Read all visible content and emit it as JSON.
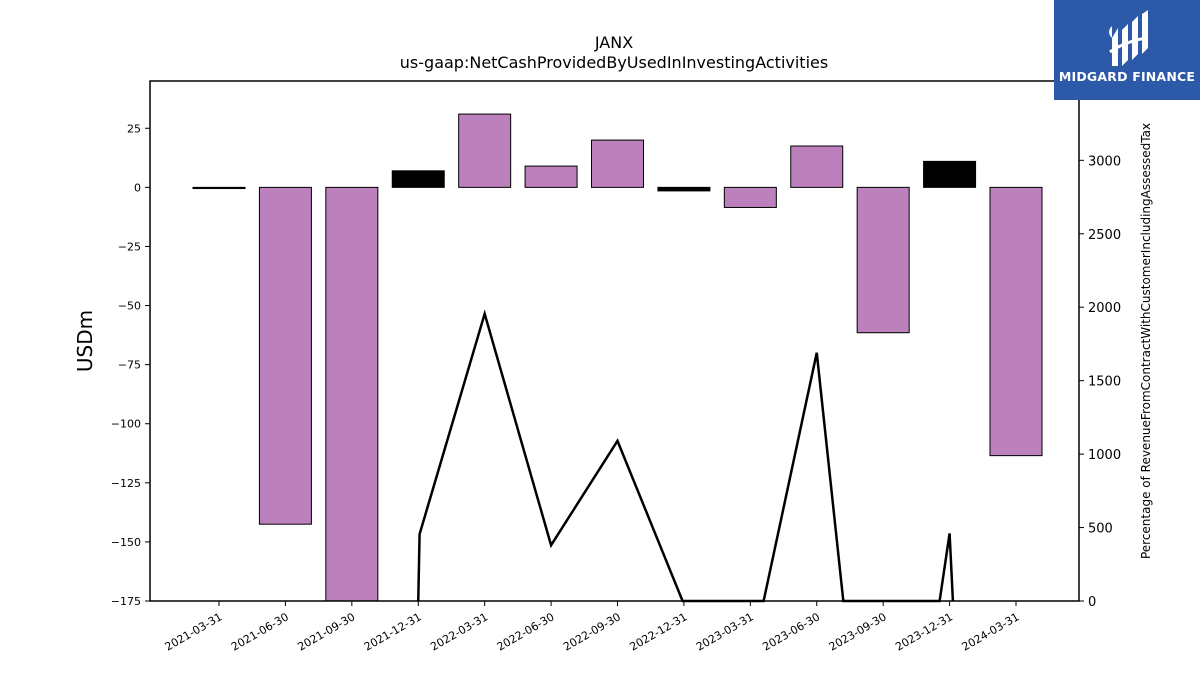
{
  "chart_data": {
    "type": "bar",
    "title": "JANX",
    "subtitle": "us-gaap:NetCashProvidedByUsedInInvestingActivities",
    "ylabel": "USDm",
    "y2label": "Percentage of RevenueFromContractWithCustomerIncludingAssessedTax",
    "categories": [
      "2021-03-31",
      "2021-06-30",
      "2021-09-30",
      "2021-12-31",
      "2022-03-31",
      "2022-06-30",
      "2022-09-30",
      "2022-12-31",
      "2023-03-31",
      "2023-06-30",
      "2023-09-30",
      "2023-12-31",
      "2024-03-31"
    ],
    "values": [
      -0.5,
      -142.5,
      -178,
      7,
      31,
      9,
      20,
      -1.5,
      -8.5,
      17.5,
      -61.5,
      11,
      -113.5
    ],
    "bar_colors": [
      "#000000",
      "#bc80bd",
      "#bc80bd",
      "#000000",
      "#bc80bd",
      "#bc80bd",
      "#bc80bd",
      "#000000",
      "#bc80bd",
      "#bc80bd",
      "#bc80bd",
      "#000000",
      "#bc80bd"
    ],
    "ylim": [
      -175,
      45
    ],
    "yticks": [
      25,
      0,
      -25,
      -50,
      -75,
      -100,
      -125,
      -150,
      -175
    ],
    "ytick_labels": [
      "25",
      "0",
      "−25",
      "−50",
      "−75",
      "−100",
      "−125",
      "−150",
      "−175"
    ],
    "y2lim": [
      0,
      3540
    ],
    "y2ticks": [
      0,
      500,
      1000,
      1500,
      2000,
      2500,
      3000
    ],
    "line": {
      "x": [
        3,
        3.02,
        4,
        5,
        6,
        6.98,
        8.2,
        9,
        9.4,
        10.85,
        11,
        11.05
      ],
      "values": [
        0,
        455,
        1955,
        380,
        1090,
        0,
        0,
        1690,
        0,
        0,
        460,
        0
      ]
    },
    "grid": false
  },
  "logo": {
    "text": "MIDGARD FINANCE",
    "bg_color": "#2d5aa8"
  }
}
